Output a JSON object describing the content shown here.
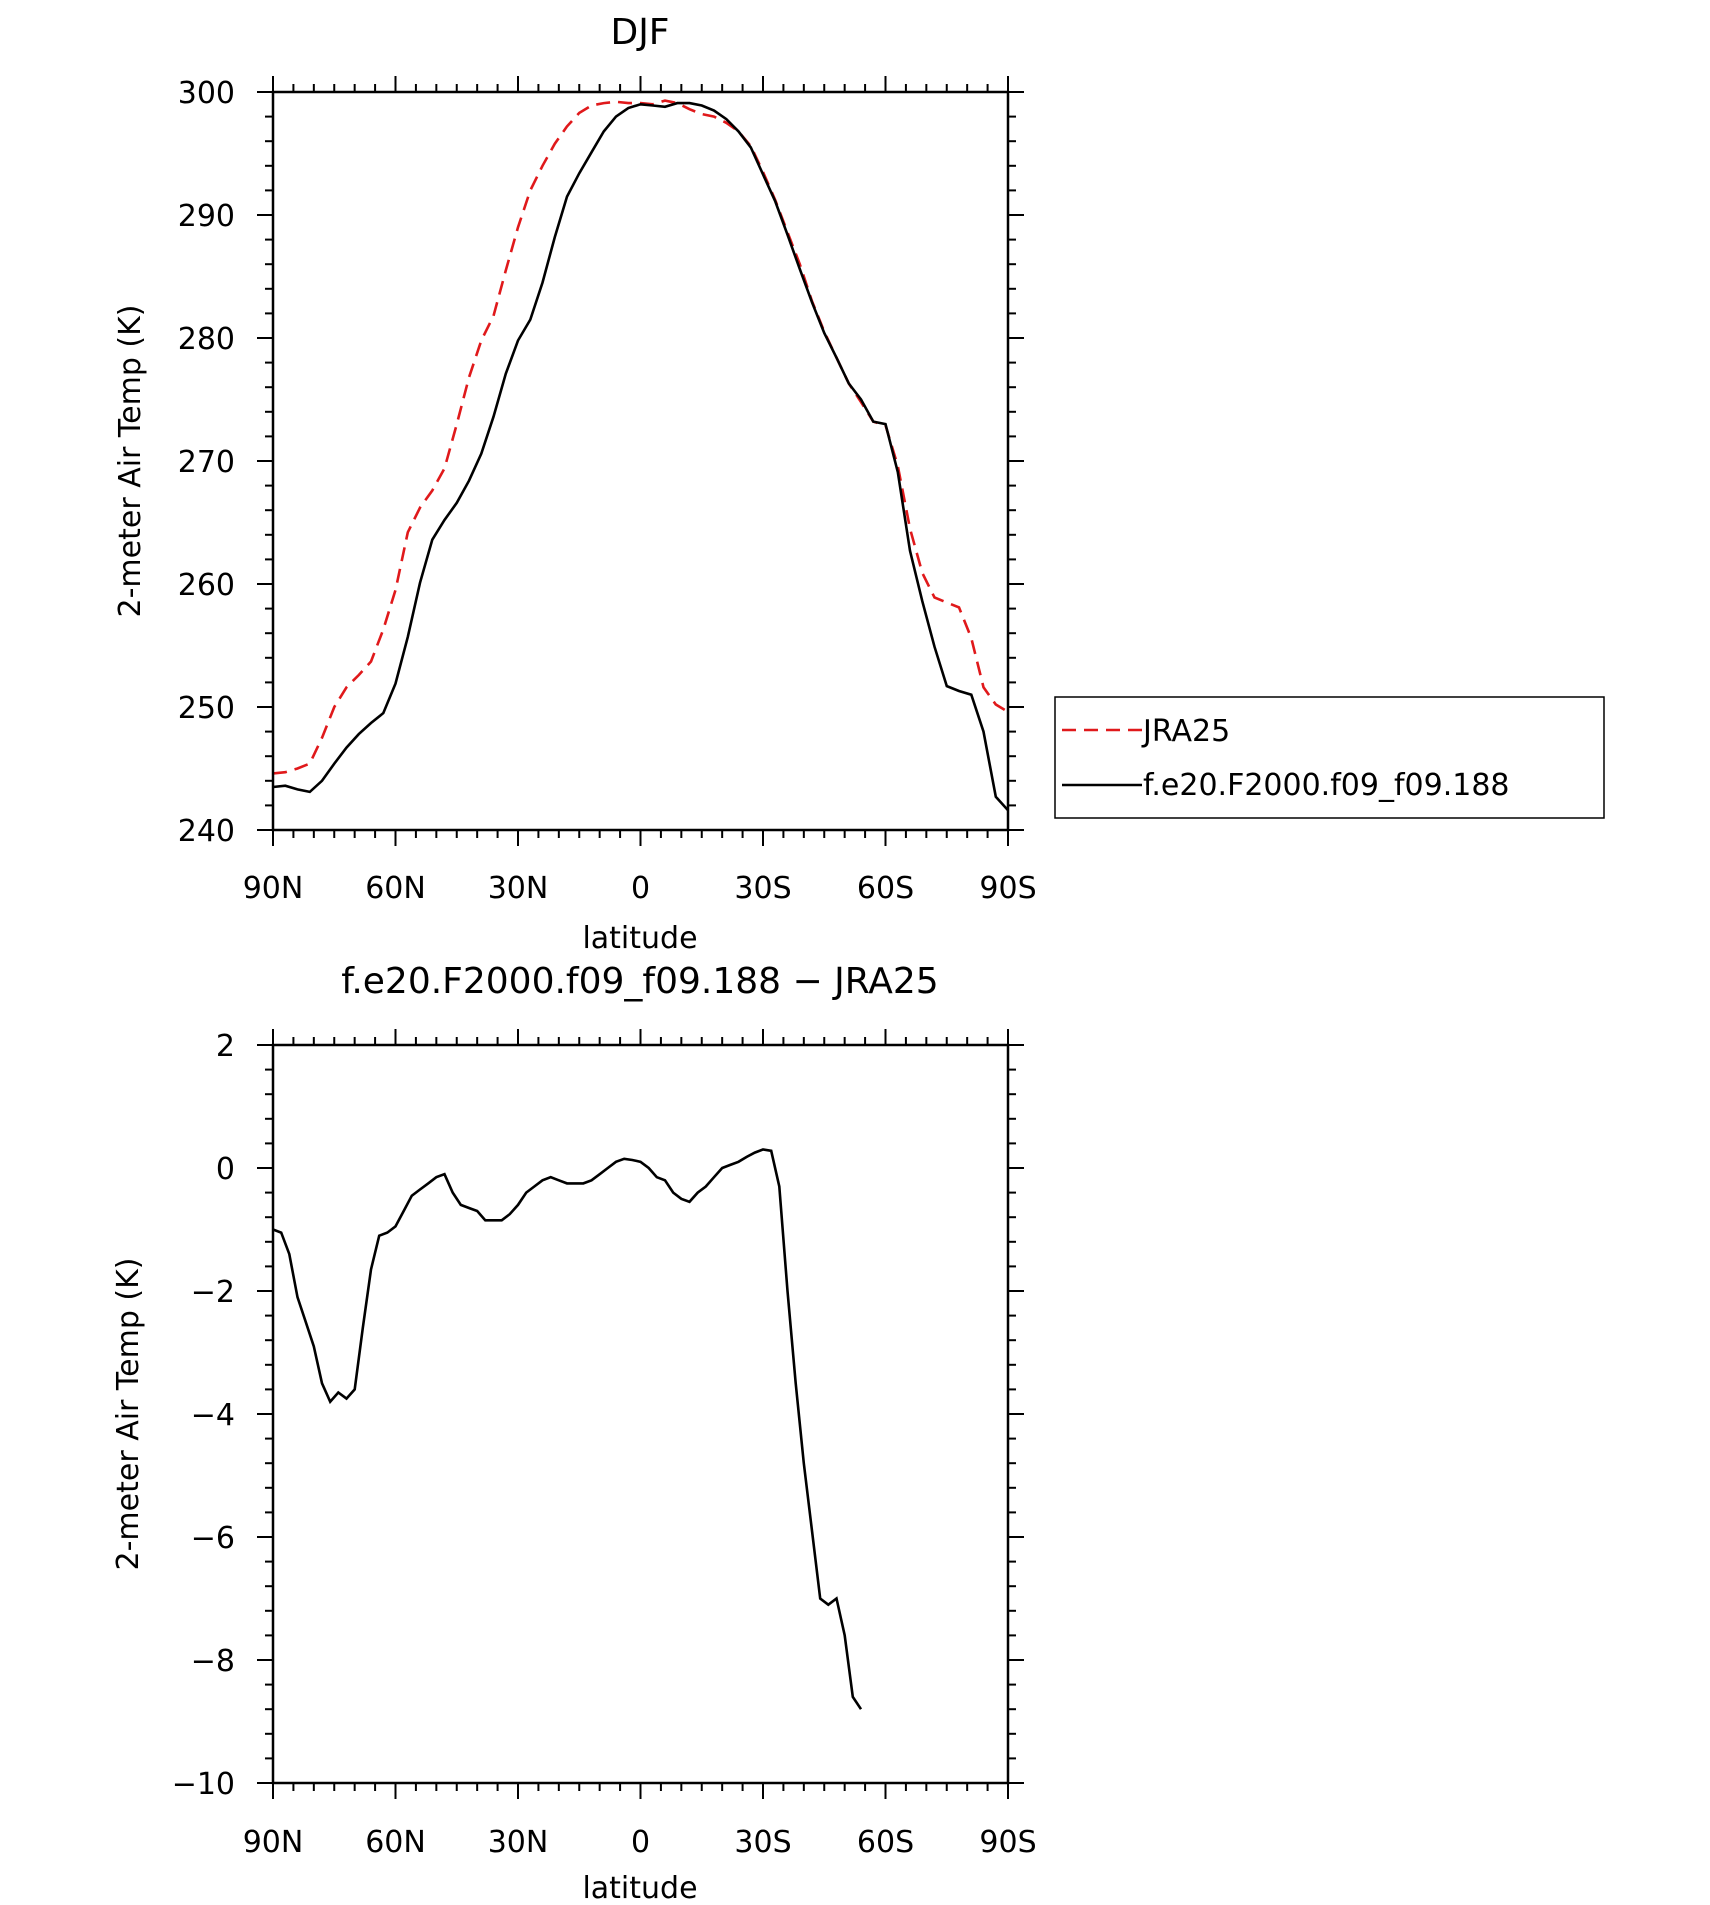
{
  "chart_data": [
    {
      "type": "line",
      "title": "DJF",
      "xlabel": "latitude",
      "ylabel": "2-meter Air Temp (K)",
      "xlim": [
        90,
        -90
      ],
      "ylim": [
        240,
        300
      ],
      "x_tick_values": [
        90,
        60,
        30,
        0,
        -30,
        -60,
        -90
      ],
      "x_tick_labels": [
        "90N",
        "60N",
        "30N",
        "0",
        "30S",
        "60S",
        "90S"
      ],
      "y_tick_values": [
        240,
        250,
        260,
        270,
        280,
        290,
        300
      ],
      "y_tick_labels": [
        "240",
        "250",
        "260",
        "270",
        "280",
        "290",
        "300"
      ],
      "grid": false,
      "legend_position": "right",
      "series": [
        {
          "name": "JRA25",
          "color": "#e0191b",
          "dash": "dashed",
          "points": [
            [
              90,
              244.6
            ],
            [
              87,
              244.7
            ],
            [
              84,
              245.0
            ],
            [
              81,
              245.4
            ],
            [
              78,
              247.5
            ],
            [
              75,
              250.0
            ],
            [
              72,
              251.6
            ],
            [
              69,
              252.6
            ],
            [
              66,
              253.7
            ],
            [
              63,
              256.3
            ],
            [
              60,
              259.5
            ],
            [
              57,
              264.2
            ],
            [
              54,
              266.2
            ],
            [
              51,
              267.6
            ],
            [
              48,
              269.4
            ],
            [
              45,
              273.0
            ],
            [
              42,
              276.8
            ],
            [
              39,
              279.8
            ],
            [
              36,
              281.8
            ],
            [
              33,
              285.5
            ],
            [
              30,
              289.0
            ],
            [
              27,
              292.0
            ],
            [
              24,
              294.0
            ],
            [
              21,
              295.8
            ],
            [
              18,
              297.2
            ],
            [
              15,
              298.3
            ],
            [
              12,
              298.9
            ],
            [
              9,
              299.1
            ],
            [
              6,
              299.2
            ],
            [
              3,
              299.1
            ],
            [
              0,
              299.1
            ],
            [
              -3,
              299.0
            ],
            [
              -6,
              299.3
            ],
            [
              -9,
              299.1
            ],
            [
              -12,
              298.6
            ],
            [
              -15,
              298.2
            ],
            [
              -18,
              298.0
            ],
            [
              -21,
              297.5
            ],
            [
              -24,
              296.8
            ],
            [
              -27,
              295.6
            ],
            [
              -30,
              293.5
            ],
            [
              -33,
              291.2
            ],
            [
              -36,
              288.6
            ],
            [
              -39,
              286.0
            ],
            [
              -42,
              283.0
            ],
            [
              -45,
              280.5
            ],
            [
              -48,
              278.4
            ],
            [
              -51,
              276.3
            ],
            [
              -54,
              274.8
            ],
            [
              -57,
              273.2
            ],
            [
              -60,
              272.9
            ],
            [
              -63,
              269.6
            ],
            [
              -66,
              264.5
            ],
            [
              -69,
              260.9
            ],
            [
              -72,
              258.9
            ],
            [
              -75,
              258.5
            ],
            [
              -78,
              258.1
            ],
            [
              -81,
              255.6
            ],
            [
              -84,
              251.6
            ],
            [
              -87,
              250.2
            ],
            [
              -90,
              249.6
            ]
          ]
        },
        {
          "name": "f.e20.F2000.f09_f09.188",
          "color": "#000000",
          "dash": "solid",
          "points": [
            [
              90,
              243.5
            ],
            [
              87,
              243.6
            ],
            [
              84,
              243.3
            ],
            [
              81,
              243.1
            ],
            [
              78,
              244.0
            ],
            [
              75,
              245.4
            ],
            [
              72,
              246.7
            ],
            [
              69,
              247.8
            ],
            [
              66,
              248.7
            ],
            [
              63,
              249.5
            ],
            [
              60,
              251.9
            ],
            [
              57,
              255.7
            ],
            [
              54,
              260.1
            ],
            [
              51,
              263.6
            ],
            [
              48,
              265.2
            ],
            [
              45,
              266.6
            ],
            [
              42,
              268.4
            ],
            [
              39,
              270.6
            ],
            [
              36,
              273.6
            ],
            [
              33,
              277.1
            ],
            [
              30,
              279.8
            ],
            [
              27,
              281.5
            ],
            [
              24,
              284.5
            ],
            [
              21,
              288.2
            ],
            [
              18,
              291.5
            ],
            [
              15,
              293.4
            ],
            [
              12,
              295.1
            ],
            [
              9,
              296.8
            ],
            [
              6,
              298.0
            ],
            [
              3,
              298.7
            ],
            [
              0,
              299.0
            ],
            [
              -3,
              298.9
            ],
            [
              -6,
              298.8
            ],
            [
              -9,
              299.1
            ],
            [
              -12,
              299.1
            ],
            [
              -15,
              298.9
            ],
            [
              -18,
              298.5
            ],
            [
              -21,
              297.8
            ],
            [
              -24,
              296.8
            ],
            [
              -27,
              295.5
            ],
            [
              -30,
              293.3
            ],
            [
              -33,
              291.1
            ],
            [
              -36,
              288.4
            ],
            [
              -39,
              285.6
            ],
            [
              -42,
              282.9
            ],
            [
              -45,
              280.4
            ],
            [
              -48,
              278.4
            ],
            [
              -51,
              276.3
            ],
            [
              -54,
              275.0
            ],
            [
              -57,
              273.2
            ],
            [
              -60,
              273.0
            ],
            [
              -63,
              269.1
            ],
            [
              -66,
              262.7
            ],
            [
              -69,
              258.6
            ],
            [
              -72,
              254.9
            ],
            [
              -75,
              251.7
            ],
            [
              -78,
              251.3
            ],
            [
              -81,
              251.0
            ],
            [
              -84,
              248.0
            ],
            [
              -87,
              242.7
            ],
            [
              -90,
              241.6
            ]
          ]
        }
      ]
    },
    {
      "type": "line",
      "title": "f.e20.F2000.f09_f09.188 − JRA25",
      "xlabel": "latitude",
      "ylabel": "2-meter Air Temp (K)",
      "xlim": [
        90,
        -90
      ],
      "ylim": [
        -10,
        2
      ],
      "x_tick_values": [
        90,
        60,
        30,
        0,
        -30,
        -60,
        -90
      ],
      "x_tick_labels": [
        "90N",
        "60N",
        "30N",
        "0",
        "30S",
        "60S",
        "90S"
      ],
      "y_tick_values": [
        -10,
        -8,
        -6,
        -4,
        -2,
        0,
        2
      ],
      "y_tick_labels": [
        "−10",
        "−8",
        "−6",
        "−4",
        "−2",
        "0",
        "2"
      ],
      "grid": false,
      "series": [
        {
          "color": "#000000",
          "dash": "solid",
          "points": [
            [
              90,
              -1.0
            ],
            [
              88,
              -1.05
            ],
            [
              86,
              -1.4
            ],
            [
              84,
              -2.1
            ],
            [
              82,
              -2.5
            ],
            [
              80,
              -2.9
            ],
            [
              78,
              -3.5
            ],
            [
              76,
              -3.8
            ],
            [
              74,
              -3.65
            ],
            [
              72,
              -3.75
            ],
            [
              70,
              -3.6
            ],
            [
              68,
              -2.6
            ],
            [
              66,
              -1.65
            ],
            [
              64,
              -1.1
            ],
            [
              62,
              -1.05
            ],
            [
              60,
              -0.95
            ],
            [
              58,
              -0.7
            ],
            [
              56,
              -0.45
            ],
            [
              54,
              -0.35
            ],
            [
              52,
              -0.25
            ],
            [
              50,
              -0.15
            ],
            [
              48,
              -0.1
            ],
            [
              46,
              -0.4
            ],
            [
              44,
              -0.6
            ],
            [
              42,
              -0.65
            ],
            [
              40,
              -0.7
            ],
            [
              38,
              -0.85
            ],
            [
              36,
              -0.85
            ],
            [
              34,
              -0.85
            ],
            [
              32,
              -0.75
            ],
            [
              30,
              -0.6
            ],
            [
              28,
              -0.4
            ],
            [
              26,
              -0.3
            ],
            [
              24,
              -0.2
            ],
            [
              22,
              -0.15
            ],
            [
              20,
              -0.2
            ],
            [
              18,
              -0.25
            ],
            [
              16,
              -0.25
            ],
            [
              14,
              -0.25
            ],
            [
              12,
              -0.2
            ],
            [
              10,
              -0.1
            ],
            [
              8,
              0.0
            ],
            [
              6,
              0.1
            ],
            [
              4,
              0.15
            ],
            [
              2,
              0.13
            ],
            [
              0,
              0.1
            ],
            [
              -2,
              0.0
            ],
            [
              -4,
              -0.15
            ],
            [
              -6,
              -0.2
            ],
            [
              -8,
              -0.4
            ],
            [
              -10,
              -0.5
            ],
            [
              -12,
              -0.55
            ],
            [
              -14,
              -0.4
            ],
            [
              -16,
              -0.3
            ],
            [
              -18,
              -0.15
            ],
            [
              -20,
              0.0
            ],
            [
              -22,
              0.05
            ],
            [
              -24,
              0.1
            ],
            [
              -26,
              0.18
            ],
            [
              -28,
              0.25
            ],
            [
              -30,
              0.3
            ],
            [
              -32,
              0.28
            ],
            [
              -34,
              -0.3
            ],
            [
              -36,
              -2.0
            ],
            [
              -38,
              -3.5
            ],
            [
              -40,
              -4.8
            ],
            [
              -42,
              -5.9
            ],
            [
              -44,
              -7.0
            ],
            [
              -46,
              -7.1
            ],
            [
              -48,
              -7.0
            ],
            [
              -50,
              -7.6
            ],
            [
              -52,
              -8.6
            ],
            [
              -54,
              -8.8
            ]
          ]
        }
      ]
    }
  ]
}
